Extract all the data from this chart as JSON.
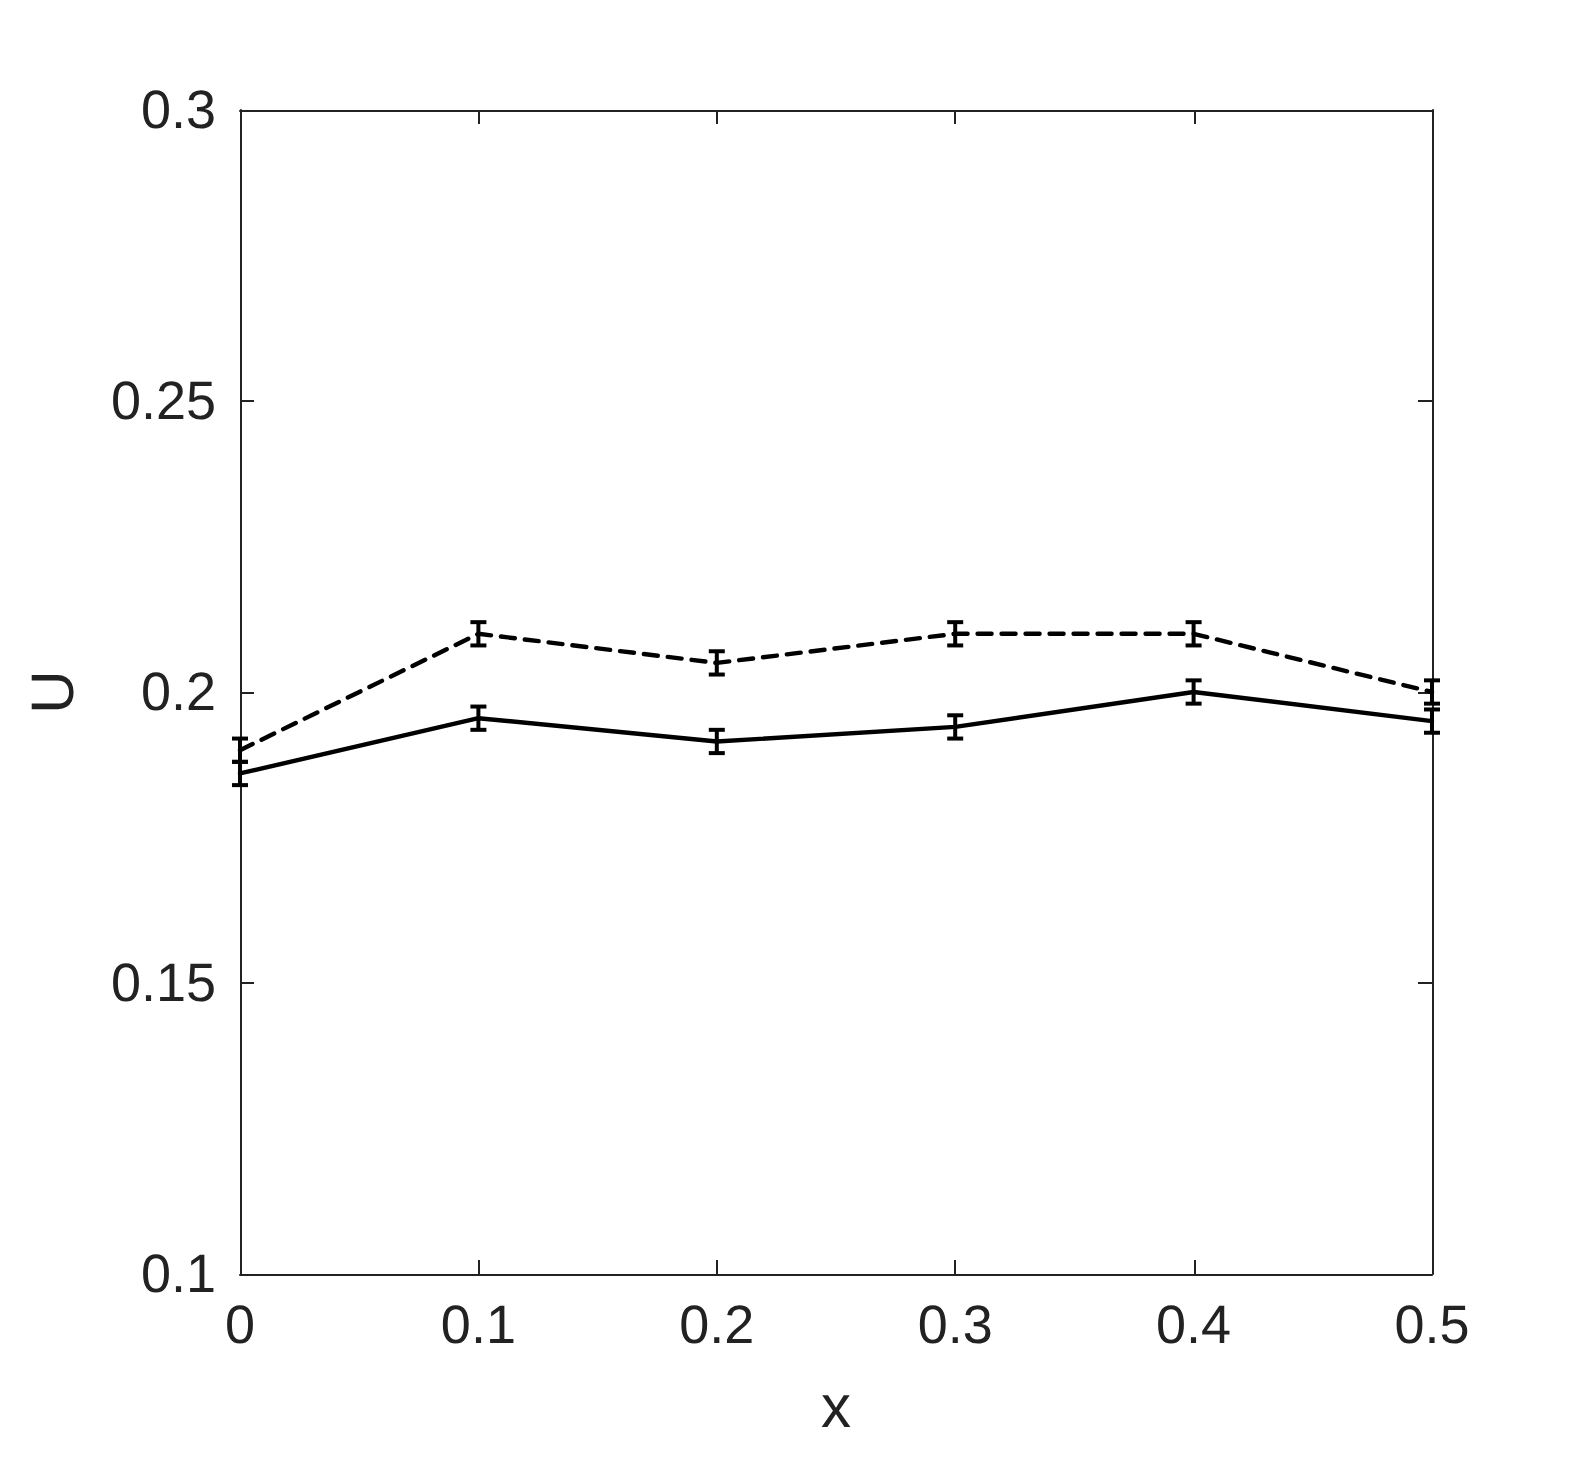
{
  "chart_data": {
    "type": "line",
    "xlabel": "x",
    "ylabel": "U",
    "x": [
      0,
      0.1,
      0.2,
      0.3,
      0.4,
      0.5
    ],
    "series": [
      {
        "color": "#000000",
        "line_style": "solid",
        "values": [
          0.186,
          0.1955,
          0.1915,
          0.194,
          0.2,
          0.195
        ],
        "errors": [
          0.002,
          0.002,
          0.002,
          0.002,
          0.002,
          0.002
        ]
      },
      {
        "color": "#000000",
        "line_style": "dashed",
        "values": [
          0.19,
          0.21,
          0.205,
          0.21,
          0.21,
          0.2
        ],
        "errors": [
          0.002,
          0.002,
          0.002,
          0.002,
          0.002,
          0.002
        ]
      }
    ],
    "xlim": [
      0,
      0.5
    ],
    "xticks": [
      0,
      0.1,
      0.2,
      0.3,
      0.4,
      0.5
    ],
    "ylim": [
      0.1,
      0.3
    ],
    "yticks": [
      0.1,
      0.15,
      0.2,
      0.25,
      0.3
    ],
    "marker": "none",
    "grid": false
  }
}
